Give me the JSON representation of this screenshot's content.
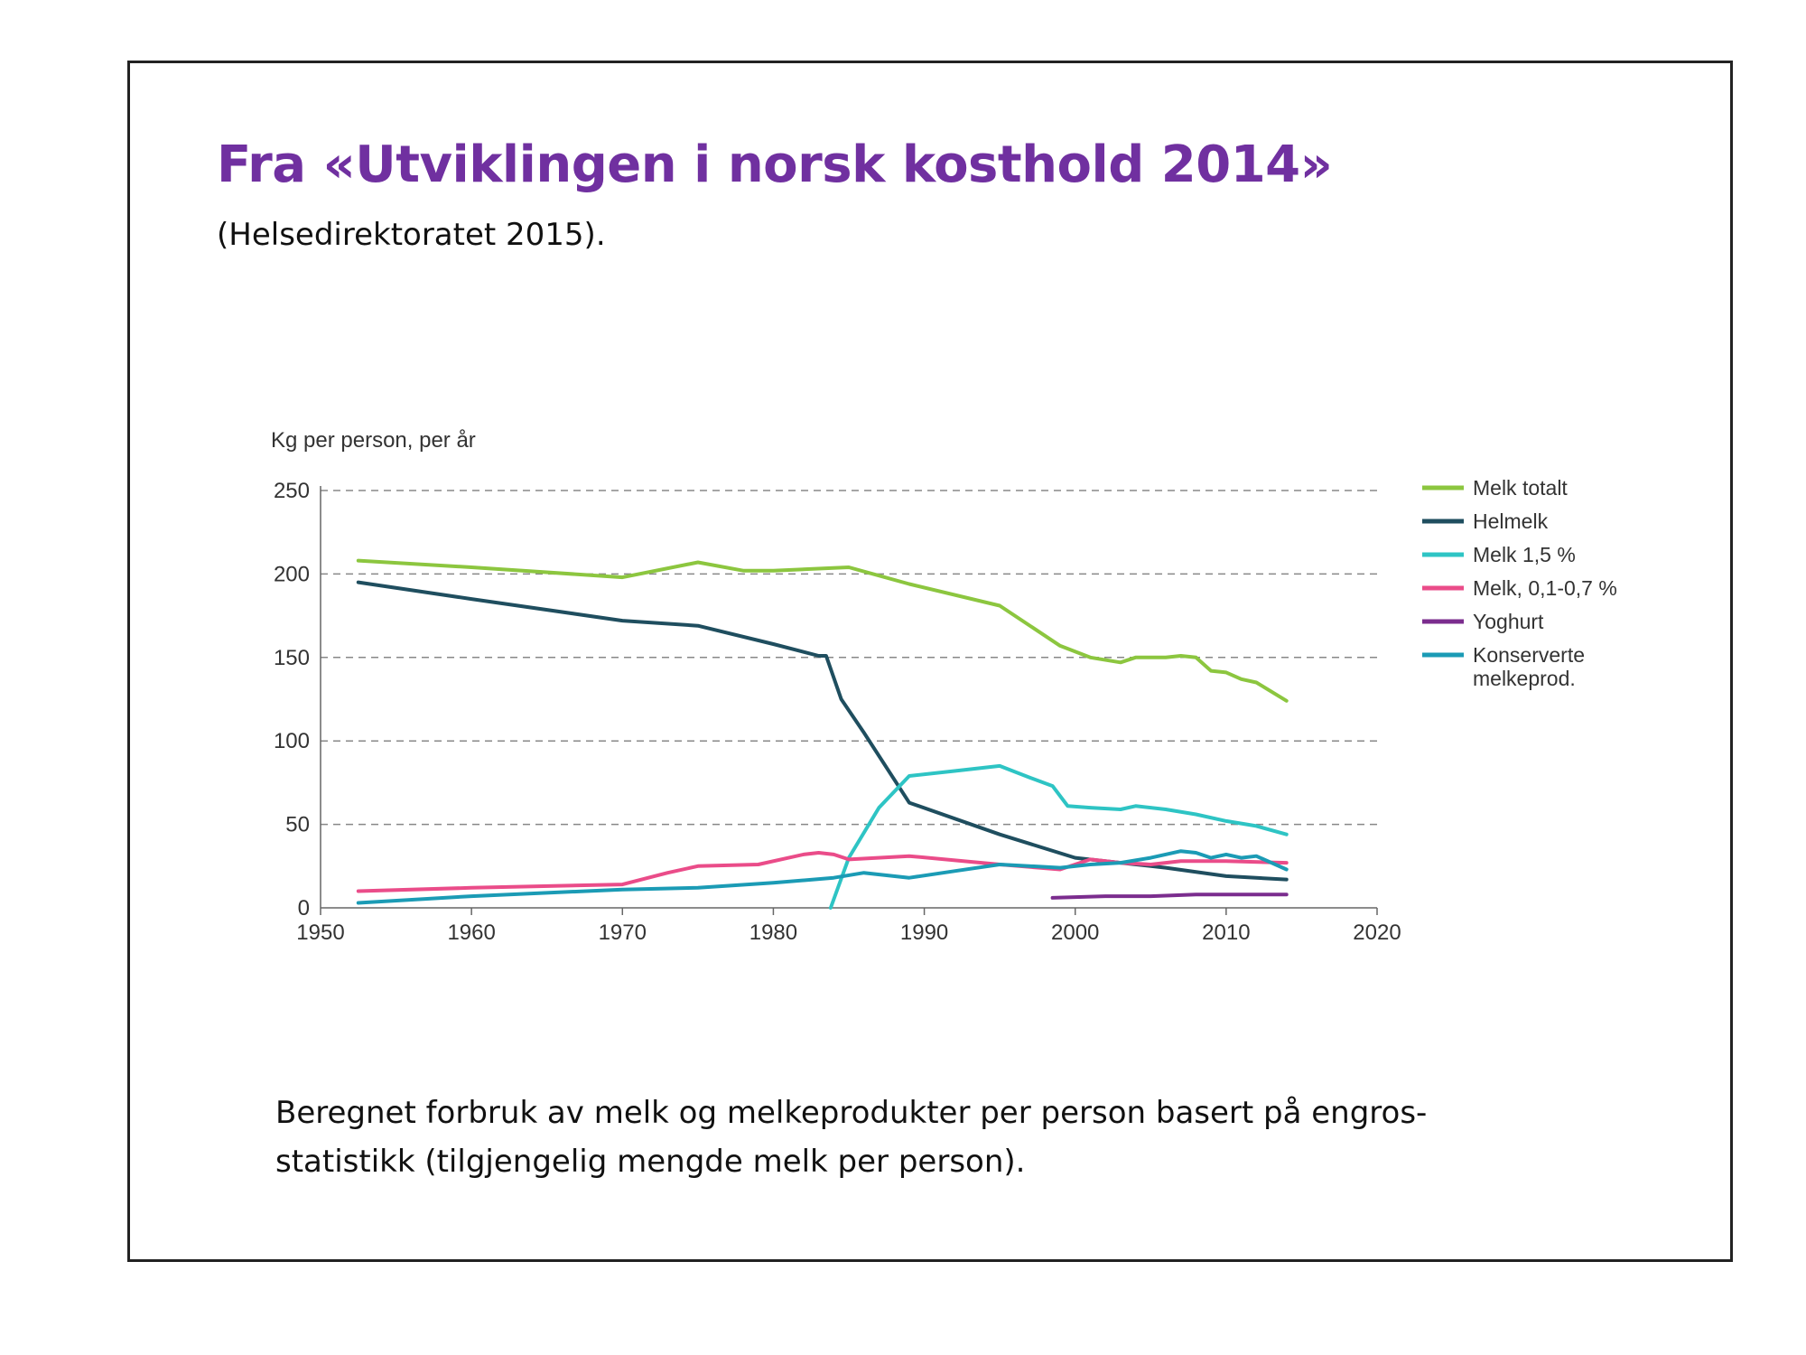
{
  "slide": {
    "title": "Fra «Utviklingen i norsk kosthold 2014»",
    "subtitle": "(Helsedirektoratet 2015).",
    "caption": "Beregnet forbruk  av melk og melkeprodukter per person basert på engros-statistikk (tilgjengelig mengde melk per person)."
  },
  "chart_data": {
    "type": "line",
    "title": "",
    "ylabel": "Kg per person, per år",
    "xlabel": "",
    "xlim": [
      1950,
      2020
    ],
    "ylim": [
      0,
      250
    ],
    "xticks": [
      1950,
      1960,
      1970,
      1980,
      1990,
      2000,
      2010,
      2020
    ],
    "yticks": [
      0,
      50,
      100,
      150,
      200,
      250
    ],
    "grid": "horizontal dashed",
    "legend_position": "right",
    "series": [
      {
        "name": "Melk totalt",
        "color": "#8cc63f",
        "points": [
          [
            1952.5,
            208
          ],
          [
            1960,
            204
          ],
          [
            1970,
            198
          ],
          [
            1975,
            207
          ],
          [
            1978,
            202
          ],
          [
            1980,
            202
          ],
          [
            1985,
            204
          ],
          [
            1989,
            194
          ],
          [
            1995,
            181
          ],
          [
            1999,
            157
          ],
          [
            2001,
            150
          ],
          [
            2003,
            147
          ],
          [
            2004,
            150
          ],
          [
            2006,
            150
          ],
          [
            2007,
            151
          ],
          [
            2008,
            150
          ],
          [
            2009,
            142
          ],
          [
            2010,
            141
          ],
          [
            2011,
            137
          ],
          [
            2012,
            135
          ],
          [
            2014,
            124
          ]
        ]
      },
      {
        "name": "Helmelk",
        "color": "#1f4e5f",
        "points": [
          [
            1952.5,
            195
          ],
          [
            1960,
            185
          ],
          [
            1970,
            172
          ],
          [
            1975,
            169
          ],
          [
            1980,
            158
          ],
          [
            1983,
            151
          ],
          [
            1983.5,
            151
          ],
          [
            1984.5,
            125
          ],
          [
            1986,
            105
          ],
          [
            1989,
            63
          ],
          [
            1995,
            44
          ],
          [
            2000,
            30
          ],
          [
            2003,
            27
          ],
          [
            2006,
            24
          ],
          [
            2010,
            19
          ],
          [
            2014,
            17
          ]
        ]
      },
      {
        "name": "Melk 1,5 %",
        "color": "#2ec4c4",
        "points": [
          [
            1983.8,
            0
          ],
          [
            1985,
            30
          ],
          [
            1987,
            60
          ],
          [
            1989,
            79
          ],
          [
            1992,
            82
          ],
          [
            1995,
            85
          ],
          [
            1997,
            78
          ],
          [
            1998.5,
            73
          ],
          [
            1999.5,
            61
          ],
          [
            2001,
            60
          ],
          [
            2003,
            59
          ],
          [
            2004,
            61
          ],
          [
            2006,
            59
          ],
          [
            2008,
            56
          ],
          [
            2010,
            52
          ],
          [
            2012,
            49
          ],
          [
            2014,
            44
          ]
        ]
      },
      {
        "name": "Melk, 0,1-0,7 %",
        "color": "#ea4c89",
        "points": [
          [
            1952.5,
            10
          ],
          [
            1960,
            12
          ],
          [
            1970,
            14
          ],
          [
            1973,
            21
          ],
          [
            1975,
            25
          ],
          [
            1979,
            26
          ],
          [
            1982,
            32
          ],
          [
            1983,
            33
          ],
          [
            1984,
            32
          ],
          [
            1985,
            29
          ],
          [
            1989,
            31
          ],
          [
            1995,
            26
          ],
          [
            1999,
            23
          ],
          [
            2001,
            29
          ],
          [
            2003,
            27
          ],
          [
            2005,
            26
          ],
          [
            2007,
            28
          ],
          [
            2010,
            28
          ],
          [
            2014,
            27
          ]
        ]
      },
      {
        "name": "Yoghurt",
        "color": "#7b2d8e",
        "points": [
          [
            1998.5,
            6
          ],
          [
            2002,
            7
          ],
          [
            2005,
            7
          ],
          [
            2008,
            8
          ],
          [
            2011,
            8
          ],
          [
            2014,
            8
          ]
        ]
      },
      {
        "name": "Konserverte melkeprod.",
        "color": "#1b9bb5",
        "points": [
          [
            1952.5,
            3
          ],
          [
            1960,
            7
          ],
          [
            1970,
            11
          ],
          [
            1975,
            12
          ],
          [
            1980,
            15
          ],
          [
            1984,
            18
          ],
          [
            1986,
            21
          ],
          [
            1989,
            18
          ],
          [
            1992,
            22
          ],
          [
            1995,
            26
          ],
          [
            1999,
            24
          ],
          [
            2001,
            26
          ],
          [
            2003,
            27
          ],
          [
            2005,
            30
          ],
          [
            2007,
            34
          ],
          [
            2008,
            33
          ],
          [
            2009,
            30
          ],
          [
            2010,
            32
          ],
          [
            2011,
            30
          ],
          [
            2012,
            31
          ],
          [
            2014,
            23
          ]
        ]
      }
    ]
  }
}
